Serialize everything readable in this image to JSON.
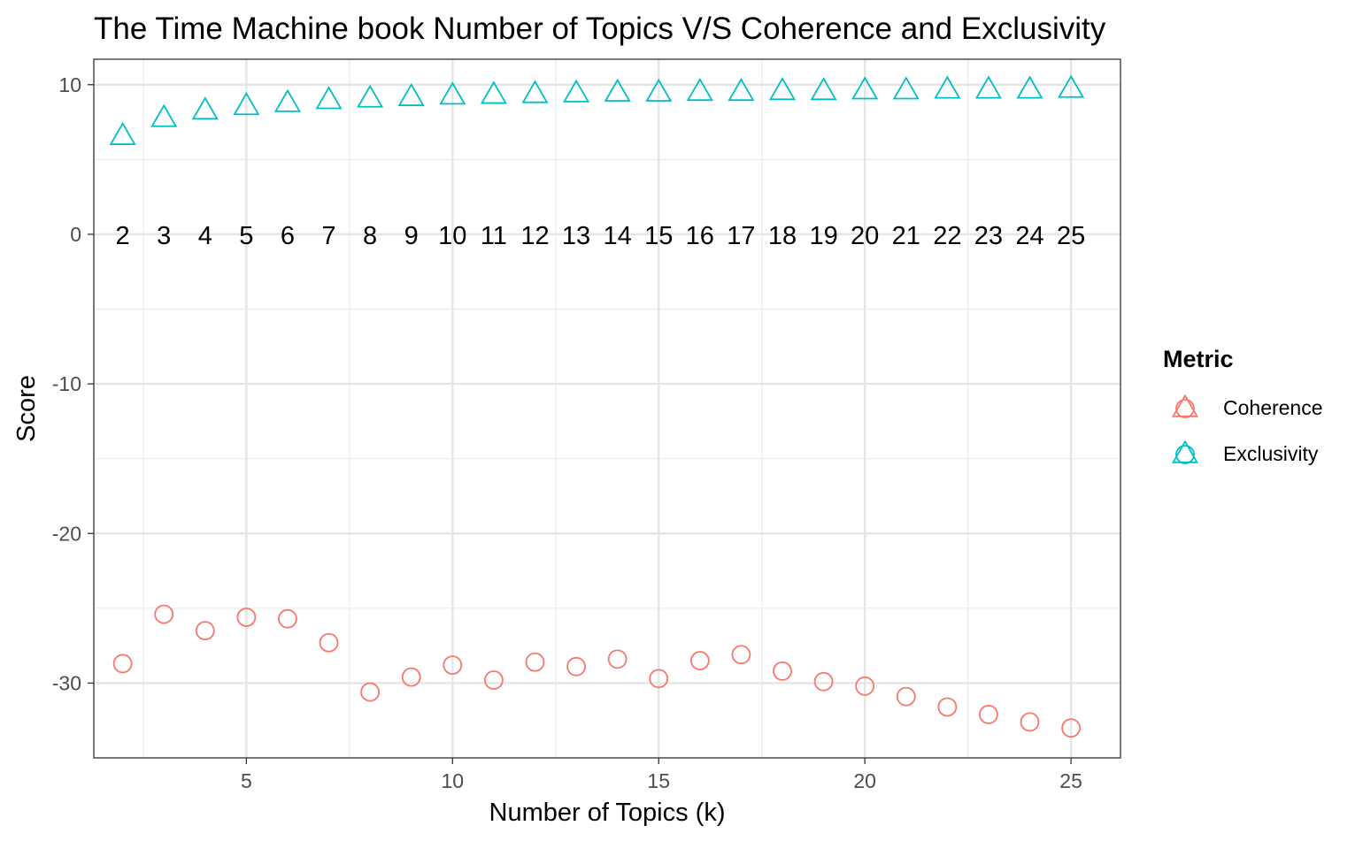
{
  "chart_data": {
    "type": "scatter",
    "title": "The Time Machine book Number of Topics V/S Coherence and Exclusivity",
    "xlabel": "Number of Topics (k)",
    "ylabel": "Score",
    "xlim": [
      1.3,
      26.2
    ],
    "ylim": [
      -35.0,
      11.7
    ],
    "x_ticks": [
      5,
      10,
      15,
      20,
      25
    ],
    "y_ticks": [
      -30,
      -20,
      -10,
      0,
      10
    ],
    "grid": true,
    "x": [
      2,
      3,
      4,
      5,
      6,
      7,
      8,
      9,
      10,
      11,
      12,
      13,
      14,
      15,
      16,
      17,
      18,
      19,
      20,
      21,
      22,
      23,
      24,
      25
    ],
    "point_labels": [
      "2",
      "3",
      "4",
      "5",
      "6",
      "7",
      "8",
      "9",
      "10",
      "11",
      "12",
      "13",
      "14",
      "15",
      "16",
      "17",
      "18",
      "19",
      "20",
      "21",
      "22",
      "23",
      "24",
      "25"
    ],
    "point_label_y": 0,
    "series": [
      {
        "name": "Coherence",
        "color": "#F8766D",
        "marker": "circle",
        "values": [
          -28.7,
          -25.4,
          -26.5,
          -25.6,
          -25.7,
          -27.3,
          -30.6,
          -29.6,
          -28.8,
          -29.8,
          -28.6,
          -28.9,
          -28.4,
          -29.7,
          -28.5,
          -28.1,
          -29.2,
          -29.9,
          -30.2,
          -30.9,
          -31.6,
          -32.1,
          -32.6,
          -33.0
        ]
      },
      {
        "name": "Exclusivity",
        "color": "#00BFC4",
        "marker": "triangle",
        "values": [
          6.6,
          7.8,
          8.3,
          8.6,
          8.8,
          9.0,
          9.1,
          9.2,
          9.3,
          9.35,
          9.4,
          9.45,
          9.5,
          9.5,
          9.55,
          9.55,
          9.6,
          9.6,
          9.65,
          9.65,
          9.7,
          9.7,
          9.7,
          9.75
        ]
      }
    ],
    "legend": {
      "title": "Metric",
      "position": "right",
      "entries": [
        "Coherence",
        "Exclusivity"
      ]
    }
  }
}
